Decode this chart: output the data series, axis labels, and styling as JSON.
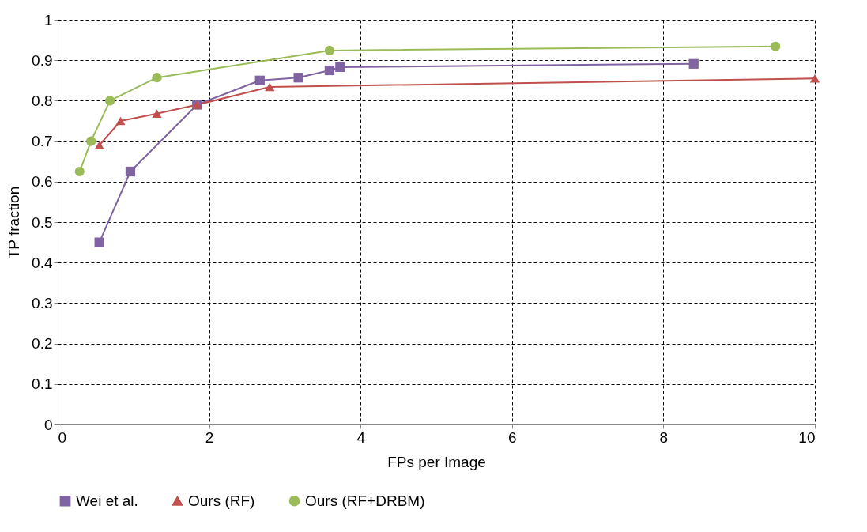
{
  "chart_data": {
    "type": "line",
    "xlabel": "FPs per Image",
    "ylabel": "TP fraction",
    "xlim": [
      0,
      10
    ],
    "xticks": [
      0,
      2,
      4,
      6,
      8,
      10
    ],
    "ylim": [
      0,
      1
    ],
    "yticks": [
      0,
      0.1,
      0.2,
      0.3,
      0.4,
      0.5,
      0.6,
      0.7,
      0.8,
      0.9,
      1
    ],
    "grid": true,
    "legend": "bottom",
    "line_style": "solid",
    "series": [
      {
        "name": "Wei et al.",
        "color": "#8064a2",
        "marker": "square",
        "x": [
          0.55,
          0.96,
          1.84,
          2.67,
          3.18,
          3.59,
          3.73,
          8.4
        ],
        "values": [
          0.45,
          0.625,
          0.79,
          0.85,
          0.857,
          0.875,
          0.883,
          0.891
        ]
      },
      {
        "name": "Ours (RF)",
        "color": "#c0504d",
        "marker": "triangle",
        "x": [
          0.55,
          0.83,
          1.31,
          1.84,
          2.8,
          10
        ],
        "values": [
          0.69,
          0.75,
          0.768,
          0.79,
          0.834,
          0.855
        ]
      },
      {
        "name": "Ours (RF+DRBM)",
        "color": "#9bbb59",
        "marker": "circle",
        "x": [
          0.29,
          0.44,
          0.69,
          1.31,
          3.59,
          9.48
        ],
        "values": [
          0.625,
          0.7,
          0.8,
          0.857,
          0.924,
          0.934
        ]
      }
    ]
  }
}
